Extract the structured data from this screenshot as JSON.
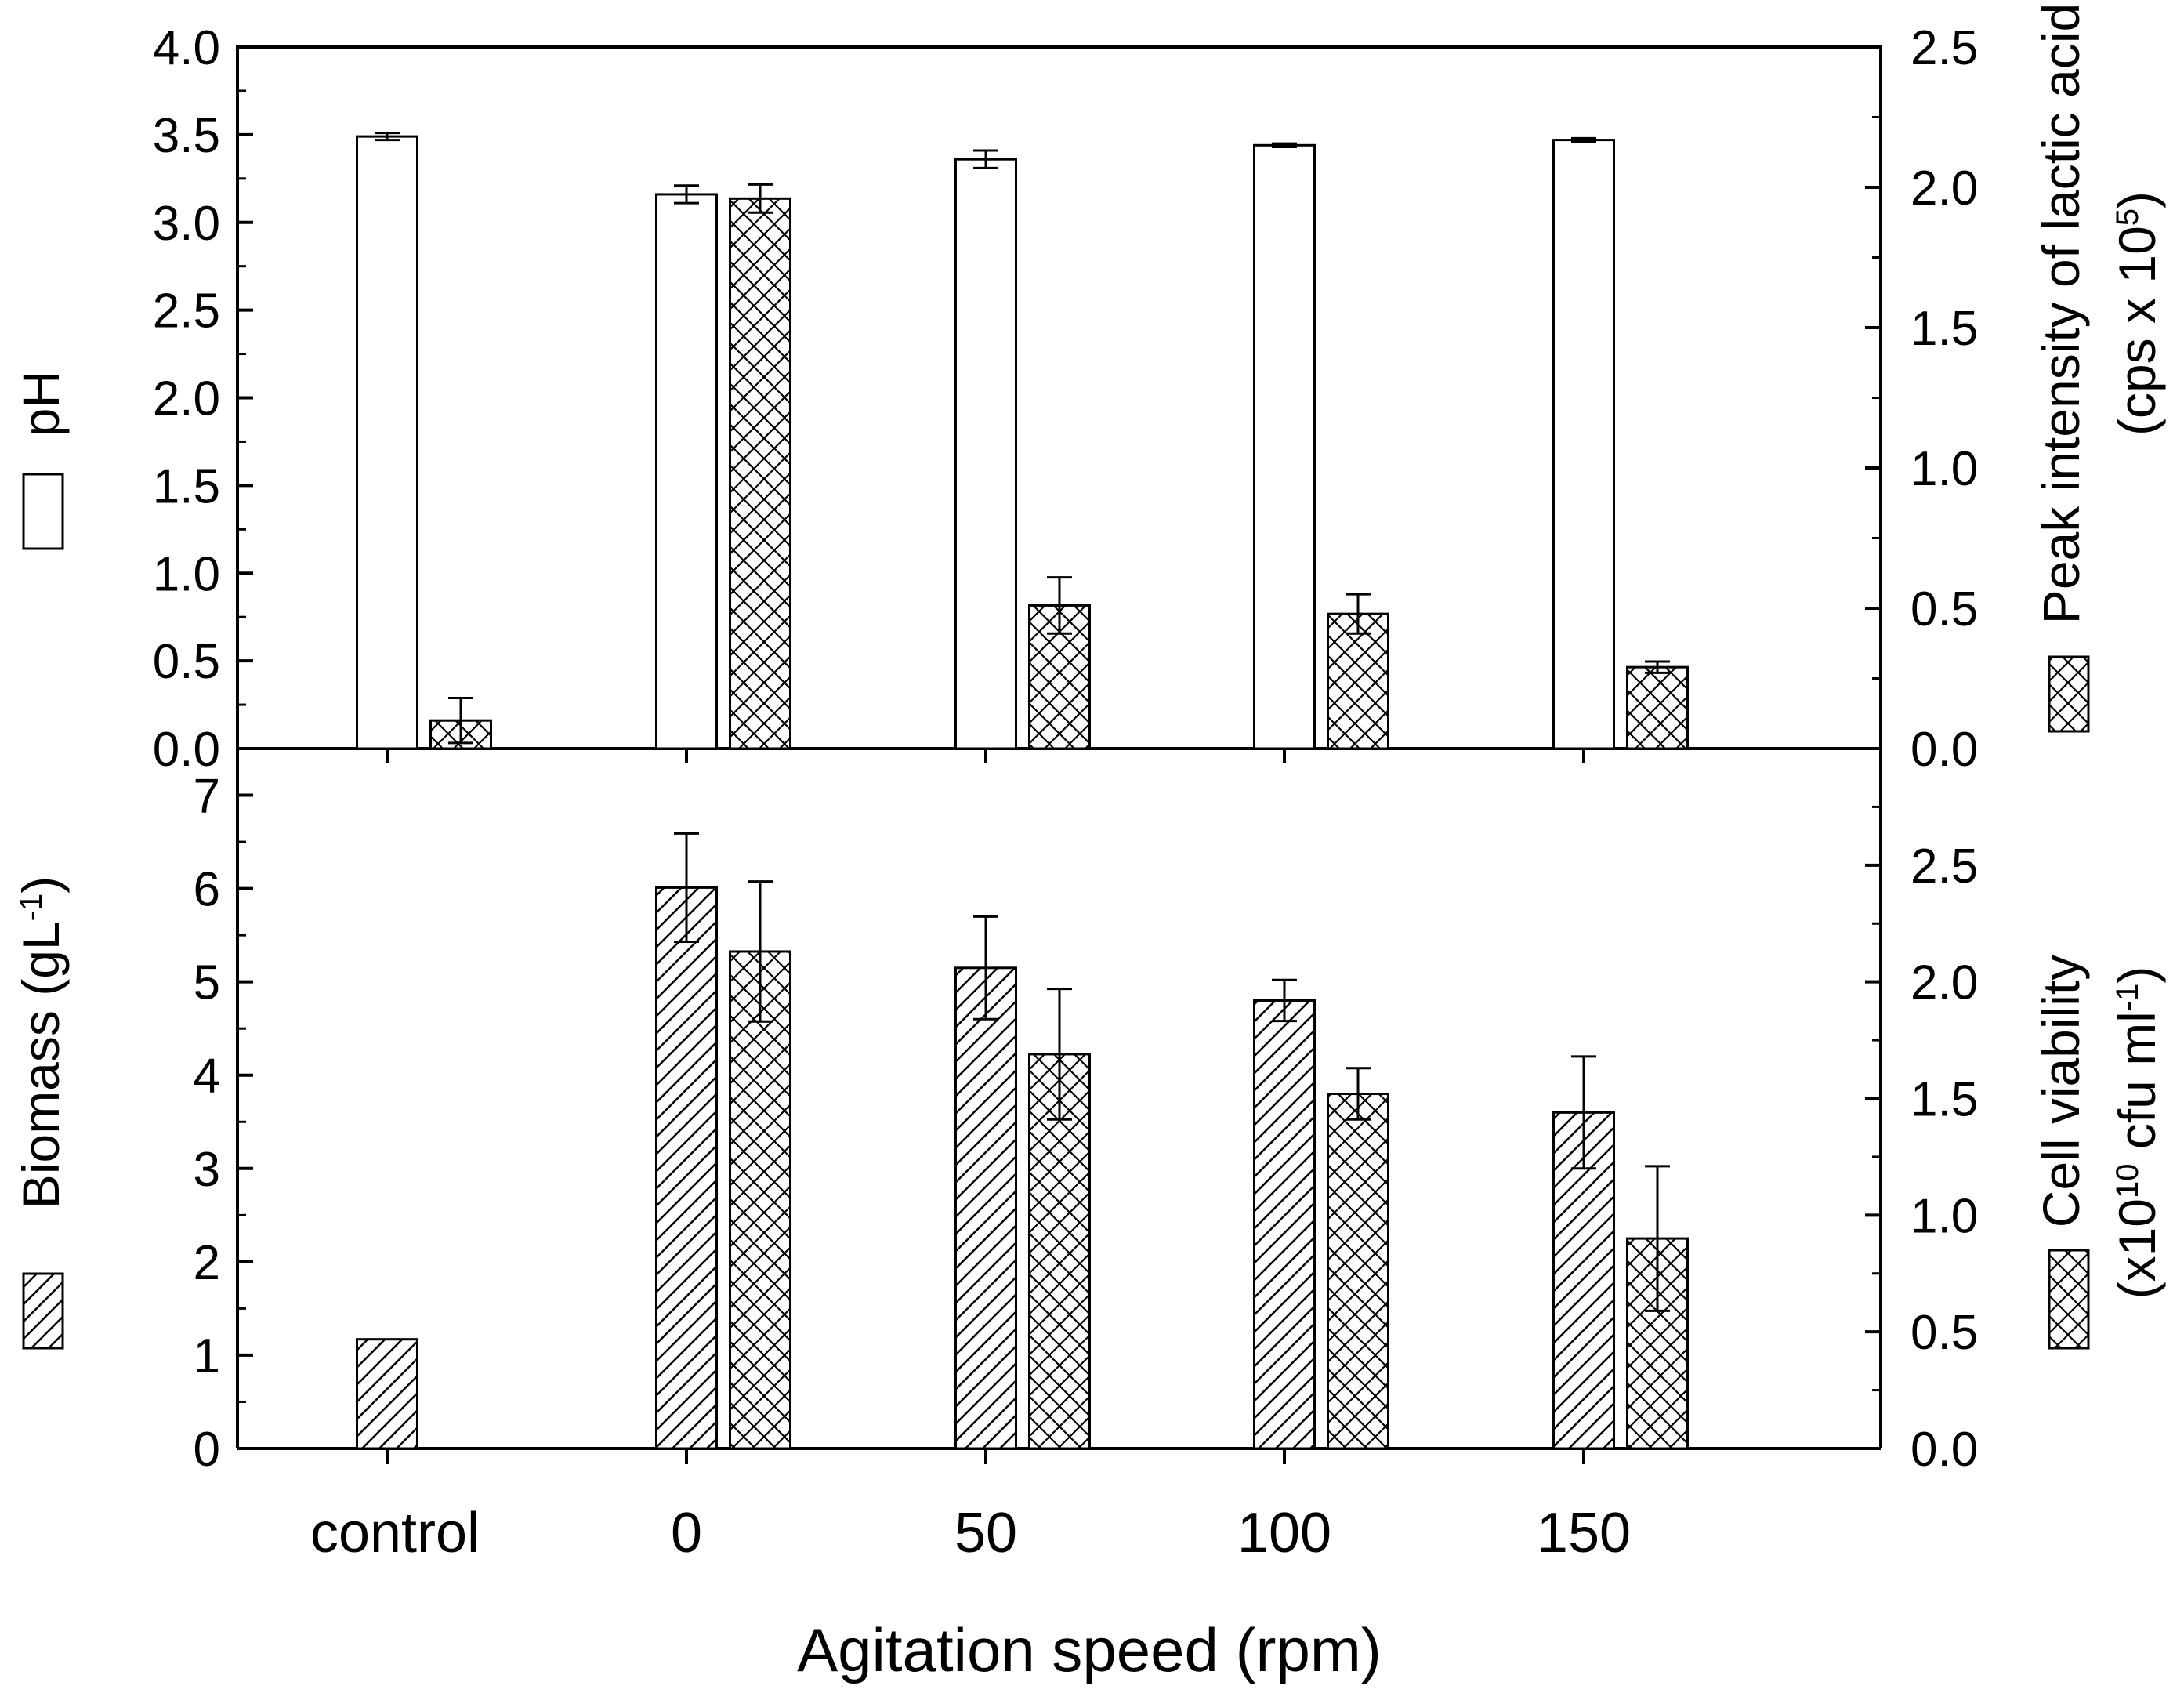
{
  "x_axis": {
    "title": "Agitation speed (rpm)",
    "categories": [
      "control",
      "0",
      "50",
      "100",
      "150"
    ]
  },
  "chart_data": [
    {
      "type": "bar",
      "panel": "top",
      "categories": [
        "control",
        "0",
        "50",
        "100",
        "150"
      ],
      "left_axis": {
        "title": "pH",
        "ylim": [
          0,
          4.0
        ],
        "ticks": [
          "0.0",
          "0.5",
          "1.0",
          "1.5",
          "2.0",
          "2.5",
          "3.0",
          "3.5",
          "4.0"
        ]
      },
      "right_axis": {
        "title_line1": "Peak intensity of lactic acid",
        "title_line2_pre": "(cps x 10",
        "title_line2_sup": "5",
        "title_line2_post": ")",
        "ylim": [
          0,
          2.5
        ],
        "ticks": [
          "0.0",
          "0.5",
          "1.0",
          "1.5",
          "2.0",
          "2.5"
        ]
      },
      "series": [
        {
          "name": "pH",
          "axis": "left",
          "pattern": "open",
          "values": [
            3.49,
            3.16,
            3.36,
            3.44,
            3.47
          ],
          "errors": [
            0.02,
            0.05,
            0.05,
            0.01,
            0.01
          ]
        },
        {
          "name": "Peak intensity of lactic acid",
          "axis": "right",
          "pattern": "crosshatch",
          "values": [
            0.1,
            1.96,
            0.51,
            0.48,
            0.29
          ],
          "errors": [
            0.08,
            0.05,
            0.1,
            0.07,
            0.02
          ]
        }
      ]
    },
    {
      "type": "bar",
      "panel": "bottom",
      "categories": [
        "control",
        "0",
        "50",
        "100",
        "150"
      ],
      "left_axis": {
        "title_pre": "Biomass (gL",
        "title_sup": "-1",
        "title_post": ")",
        "ylim": [
          0,
          7.5
        ],
        "ticks": [
          "0",
          "1",
          "2",
          "3",
          "4",
          "5",
          "6",
          "7"
        ]
      },
      "right_axis": {
        "title_line1": "Cell viability",
        "title_line2_pre": "(x10",
        "title_line2_sup": "10",
        "title_line2_mid": " cfu ml",
        "title_line2_sup2": "-1",
        "title_line2_post": ")",
        "ylim": [
          0,
          3.0
        ],
        "ticks": [
          "0.0",
          "0.5",
          "1.0",
          "1.5",
          "2.0",
          "2.5"
        ]
      },
      "series": [
        {
          "name": "Biomass",
          "axis": "left",
          "pattern": "diagonal",
          "values": [
            1.17,
            6.01,
            5.15,
            4.8,
            3.6
          ],
          "errors": [
            0,
            0.58,
            0.55,
            0.22,
            0.6
          ]
        },
        {
          "name": "Cell viability",
          "axis": "right",
          "pattern": "crosshatch",
          "values": [
            null,
            2.13,
            1.69,
            1.52,
            0.9
          ],
          "errors": [
            null,
            0.3,
            0.28,
            0.11,
            0.31
          ]
        }
      ]
    }
  ]
}
